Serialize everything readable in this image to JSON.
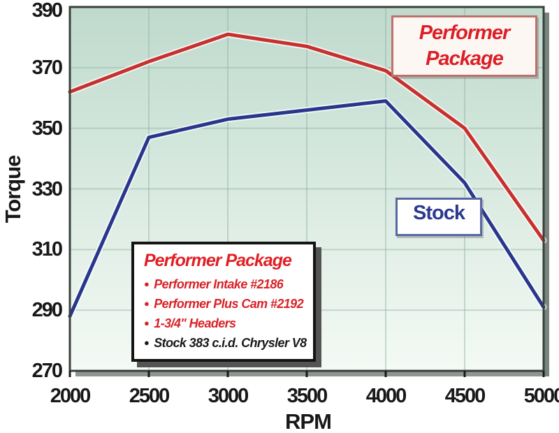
{
  "chart_data": {
    "type": "line",
    "x": [
      2000,
      2500,
      3000,
      3500,
      4000,
      4500,
      5000
    ],
    "series": [
      {
        "name": "Performer Package",
        "color": "#c8302e",
        "values": [
          362,
          372,
          381,
          377,
          369,
          350,
          313
        ]
      },
      {
        "name": "Stock",
        "color": "#28378c",
        "values": [
          288,
          347,
          353,
          356,
          359,
          332,
          291
        ]
      }
    ],
    "xlabel": "RPM",
    "ylabel": "Torque",
    "xlim": [
      2000,
      5000
    ],
    "ylim": [
      270,
      390
    ],
    "xticks": [
      2000,
      2500,
      3000,
      3500,
      4000,
      4500,
      5000
    ],
    "yticks": [
      270,
      290,
      310,
      330,
      350,
      370,
      390
    ],
    "grid": true,
    "legend_position": "inside-callout-boxes",
    "plot_bg_top": "#bfdacd",
    "plot_bg_bottom": "#f4faf5",
    "gridline_color": "#8fb2a2",
    "frame_color": "#383f3b",
    "shadow_color": "#79847e"
  },
  "callouts": {
    "performer_box": {
      "line1": "Performer",
      "line2": "Package",
      "color": "#dc1f26"
    },
    "stock_box": {
      "text": "Stock",
      "color": "#2b3a8e"
    }
  },
  "legend": {
    "title": "Performer Package",
    "title_color": "#e01f25",
    "items": [
      {
        "text": "Performer Intake #2186",
        "color": "#d92228"
      },
      {
        "text": "Performer Plus Cam #2192",
        "color": "#d92228"
      },
      {
        "text": "1-3/4\" Headers",
        "color": "#d92228"
      },
      {
        "text": "Stock 383 c.i.d. Chrysler V8",
        "color": "#1a1a1a"
      }
    ]
  }
}
